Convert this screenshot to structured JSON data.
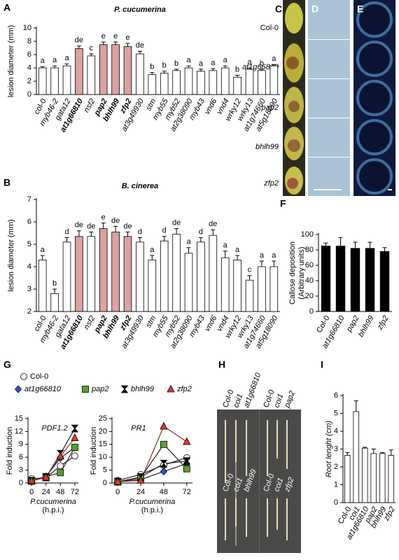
{
  "chart_data": [
    {
      "type": "bar",
      "panel": "A",
      "title": "P. cucumerina",
      "ylabel": "lesion diameter (mm)",
      "categories": [
        "col-0",
        "myb46-2",
        "gata12",
        "at1g66810",
        "nsf2",
        "pap2",
        "bhlh99",
        "zfp2",
        "at3g49930",
        "stm",
        "myb55",
        "myb52",
        "at2g38090",
        "myb43",
        "vnd6",
        "vnd4",
        "wrky12",
        "wrky13",
        "at1g74660",
        "at5g18090"
      ],
      "values": [
        4.0,
        4.0,
        4.3,
        6.9,
        5.8,
        7.5,
        7.5,
        7.2,
        6.1,
        3.0,
        3.2,
        3.6,
        4.0,
        3.5,
        3.6,
        4.0,
        2.6,
        3.8,
        3.6,
        4.3
      ],
      "errors": [
        0.2,
        0.3,
        0.3,
        0.4,
        0.3,
        0.4,
        0.4,
        0.5,
        0.4,
        0.3,
        0.3,
        0.2,
        0.3,
        0.3,
        0.3,
        0.3,
        0.3,
        0.2,
        0.2,
        0.2
      ],
      "annotations": [
        "a",
        "a",
        "a",
        "de",
        "c",
        "e",
        "e",
        "e",
        "de",
        "b",
        "b",
        "b",
        "a",
        "a",
        "a",
        "a",
        "b",
        "a",
        "b",
        "a"
      ],
      "color": "#ffffff",
      "colors": [
        "#ffffff",
        "#ffffff",
        "#ffffff",
        "#d9a3a0",
        "#ffffff",
        "#d9a3a0",
        "#d9a3a0",
        "#d9a3a0",
        "#ffffff",
        "#ffffff",
        "#ffffff",
        "#ffffff",
        "#ffffff",
        "#ffffff",
        "#ffffff",
        "#ffffff",
        "#ffffff",
        "#ffffff",
        "#ffffff",
        "#ffffff"
      ],
      "ylim": [
        0,
        10
      ],
      "yticks": [
        0,
        2,
        4,
        6,
        8,
        10
      ]
    },
    {
      "type": "bar",
      "panel": "B",
      "title": "B. cinerea",
      "ylabel": "lesion diameter (mm)",
      "categories": [
        "col-0",
        "myb46-2",
        "gata12",
        "at1g66810",
        "nsf2",
        "pap2",
        "bhlh99",
        "zfp2",
        "at3g49930",
        "stm",
        "myb55",
        "myb52",
        "at2g38090",
        "myb43",
        "vnd6",
        "vnd4",
        "wrky12",
        "wrky13",
        "at1g74660",
        "at5g18090"
      ],
      "values": [
        4.3,
        2.8,
        5.1,
        5.35,
        5.35,
        5.7,
        5.55,
        5.35,
        5.1,
        4.3,
        5.15,
        5.45,
        4.6,
        5.1,
        5.4,
        4.4,
        4.3,
        3.4,
        4.0,
        4.0
      ],
      "errors": [
        0.2,
        0.2,
        0.2,
        0.25,
        0.2,
        0.25,
        0.25,
        0.2,
        0.2,
        0.2,
        0.2,
        0.25,
        0.25,
        0.2,
        0.25,
        0.3,
        0.2,
        0.2,
        0.25,
        0.25
      ],
      "annotations": [
        "a",
        "b",
        "d",
        "de",
        "de",
        "e",
        "de",
        "de",
        "d",
        "a",
        "d",
        "de",
        "a",
        "d",
        "de",
        "a",
        "a",
        "c",
        "a",
        "a"
      ],
      "color": "#ffffff",
      "colors": [
        "#ffffff",
        "#ffffff",
        "#ffffff",
        "#d9a3a0",
        "#ffffff",
        "#d9a3a0",
        "#d9a3a0",
        "#d9a3a0",
        "#ffffff",
        "#ffffff",
        "#ffffff",
        "#ffffff",
        "#ffffff",
        "#ffffff",
        "#ffffff",
        "#ffffff",
        "#ffffff",
        "#ffffff",
        "#ffffff",
        "#ffffff"
      ],
      "ylim": [
        2,
        7
      ],
      "yticks": [
        2,
        3,
        4,
        5,
        6,
        7
      ]
    },
    {
      "type": "bar",
      "panel": "F",
      "ylabel": "Callose deposition",
      "ylabel2": "(Arbitrary units)",
      "categories": [
        "Col-0",
        "at1g66810",
        "pap2",
        "bhlh99",
        "zfp2"
      ],
      "values": [
        85,
        85,
        82,
        82,
        78
      ],
      "errors": [
        4,
        11,
        8,
        8,
        5
      ],
      "color": "#000000",
      "ylim": [
        0,
        100
      ],
      "yticks": [
        0,
        20,
        40,
        60,
        80,
        100
      ]
    },
    {
      "type": "line",
      "panel": "G",
      "title": "PDF1.2",
      "ylabel": "Fold induction",
      "xlabel": "P.cucumerina",
      "xlabel2": "(h.p.i.)",
      "x": [
        0,
        24,
        48,
        72
      ],
      "xlim": [
        -6,
        78
      ],
      "xticks": [
        0,
        24,
        48,
        72
      ],
      "ylim": [
        0,
        15
      ],
      "yticks": [
        0,
        3,
        6,
        9,
        12,
        15
      ],
      "series": [
        {
          "name": "Col-0",
          "color": "#ffffff",
          "marker": "circle",
          "values": [
            1.0,
            1.2,
            4.0,
            6.3
          ]
        },
        {
          "name": "at1g66810",
          "color": "#3a4fc8",
          "marker": "diamond",
          "values": [
            0.5,
            1.5,
            5.8,
            8.3
          ]
        },
        {
          "name": "pap2",
          "color": "#5aa02c",
          "marker": "square",
          "values": [
            0.5,
            1.5,
            2.4,
            8.3
          ]
        },
        {
          "name": "bhlh99",
          "color": "#111111",
          "marker": "hourglass",
          "values": [
            0.5,
            1.3,
            6.8,
            12.7
          ]
        },
        {
          "name": "zfp2",
          "color": "#e03a2a",
          "marker": "triangle",
          "values": [
            0.5,
            1.3,
            6.2,
            10.5
          ]
        }
      ]
    },
    {
      "type": "line",
      "title": "PR1",
      "ylabel": "Fold induction",
      "xlabel": "P.cucumerina",
      "xlabel2": "(h.p.i.)",
      "x": [
        0,
        24,
        48,
        72
      ],
      "xlim": [
        -6,
        78
      ],
      "xticks": [
        0,
        24,
        48,
        72
      ],
      "ylim": [
        0,
        25
      ],
      "yticks": [
        0,
        5,
        10,
        15,
        20,
        25
      ],
      "series": [
        {
          "color": "#ffffff",
          "marker": "circle",
          "values": [
            1.0,
            3.3,
            7.0,
            9.8
          ]
        },
        {
          "color": "#3a4fc8",
          "marker": "diamond",
          "values": [
            0.5,
            1.3,
            4.5,
            7.5
          ]
        },
        {
          "color": "#5aa02c",
          "marker": "square",
          "values": [
            0.5,
            2.0,
            15.0,
            5.5
          ]
        },
        {
          "color": "#111111",
          "marker": "hourglass",
          "values": [
            0.5,
            2.3,
            7.5,
            8.5
          ]
        },
        {
          "color": "#e03a2a",
          "marker": "triangle",
          "values": [
            0.5,
            1.0,
            22.0,
            16.0
          ]
        }
      ]
    },
    {
      "type": "bar",
      "panel": "I",
      "ylabel": "Root lenght (cm)",
      "categories": [
        "Col-0",
        "coi1",
        "at1g66810",
        "pap2",
        "bhlh99",
        "zfp2"
      ],
      "values": [
        2.65,
        5.1,
        3.05,
        2.75,
        2.75,
        2.65
      ],
      "errors": [
        0.15,
        0.6,
        0.05,
        0.25,
        0.05,
        0.3
      ],
      "color": "#ffffff",
      "ylim": [
        0,
        6
      ],
      "yticks": [
        0,
        1,
        2,
        3,
        4,
        5,
        6
      ]
    }
  ],
  "photos": {
    "C": "C",
    "D": "D",
    "E": "E",
    "H": "H",
    "row_labels": [
      "Col-0",
      "at1g66810",
      "pap2",
      "bhlh99",
      "zfp2"
    ],
    "h_labels": [
      "Col-0",
      "coi1",
      "at1g66810",
      "Col-0",
      "coi1",
      "pap2",
      "Col-0",
      "coi1",
      "bhlh99",
      "Col-0",
      "coi1",
      "zfp2"
    ]
  }
}
